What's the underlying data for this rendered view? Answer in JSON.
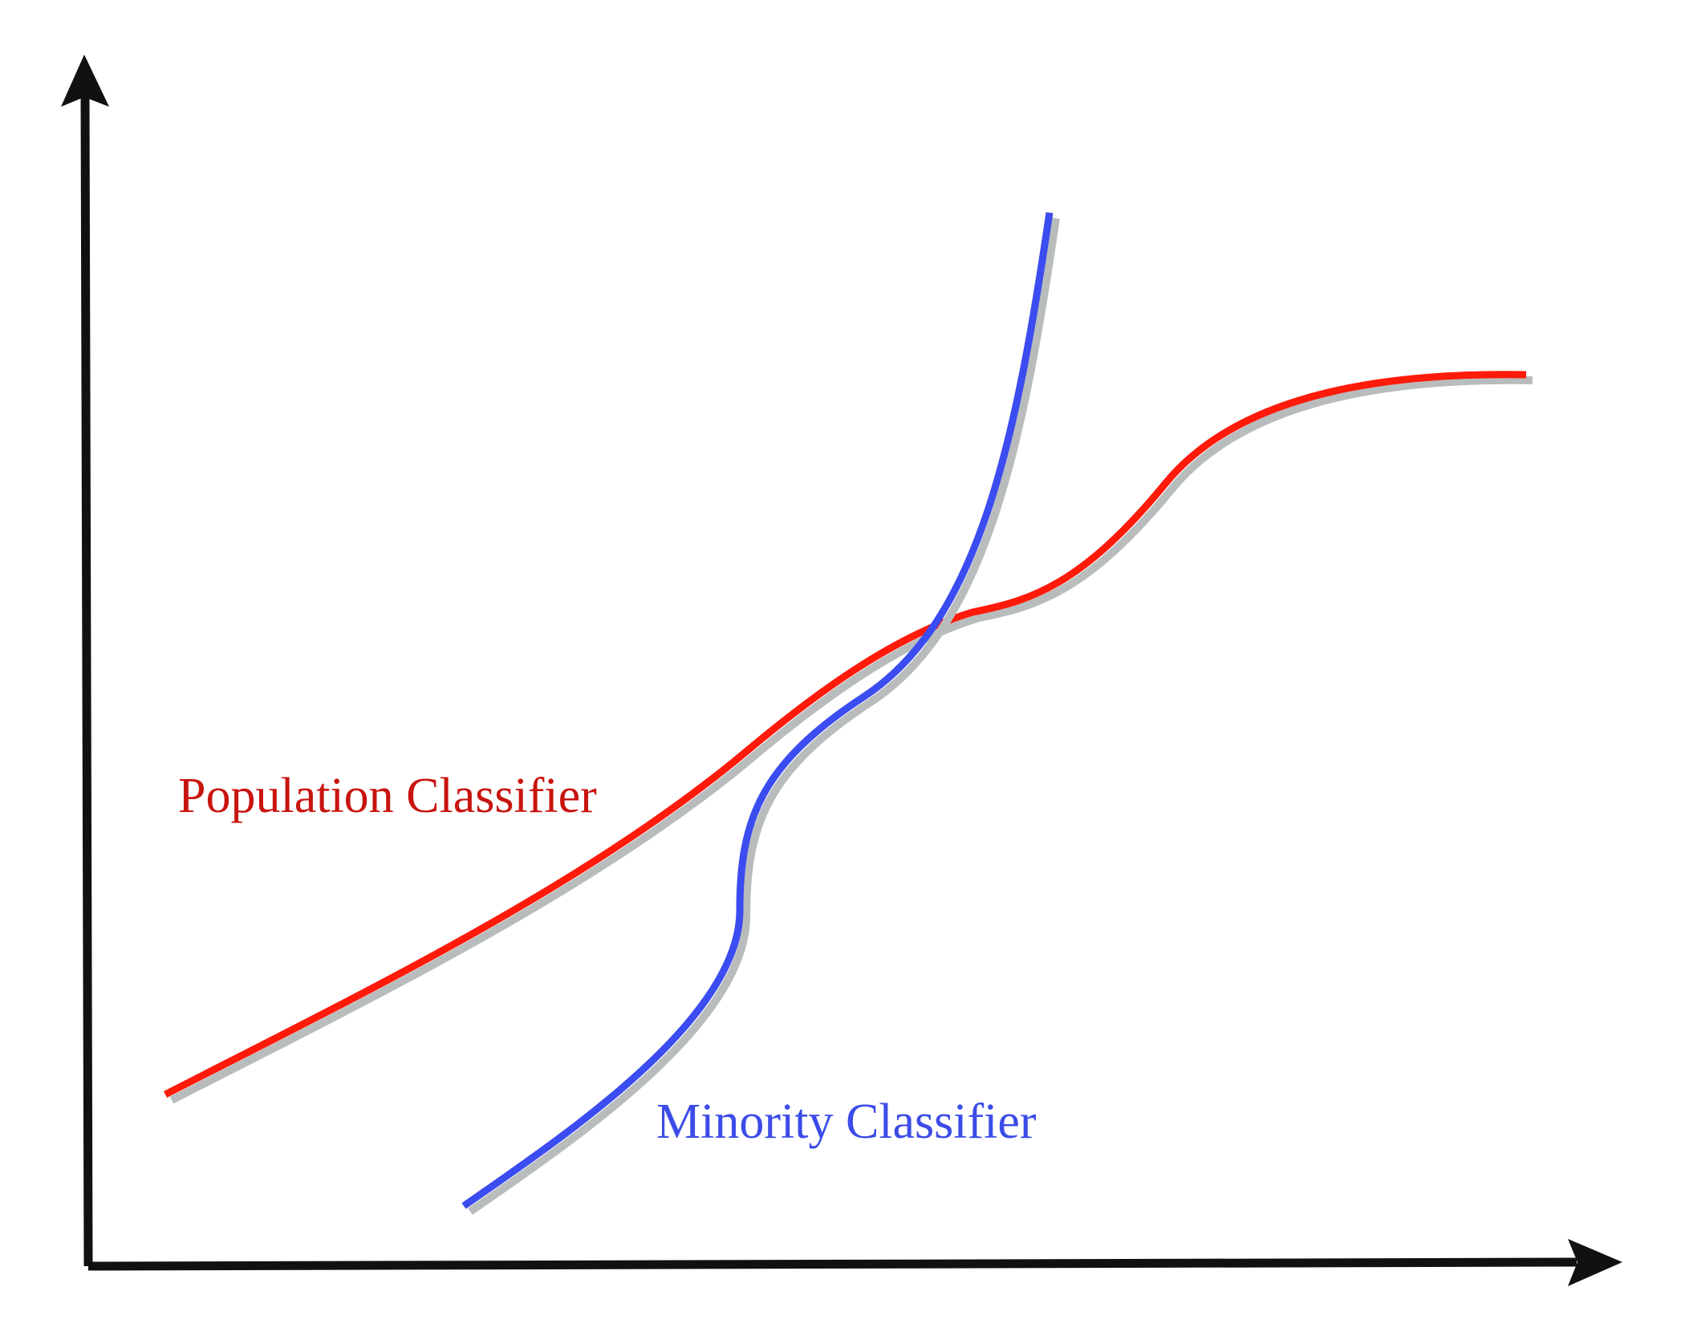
{
  "diagram": {
    "curves": [
      {
        "id": "population",
        "label": "Population Classifier",
        "color": "#ff1a0a",
        "label_color": "#c8140f"
      },
      {
        "id": "minority",
        "label": "Minority Classifier",
        "color": "#3b4cf0",
        "label_color": "#3b4ce8"
      }
    ],
    "axis_color": "#111111",
    "shadow_color": "#b9bcbc"
  }
}
